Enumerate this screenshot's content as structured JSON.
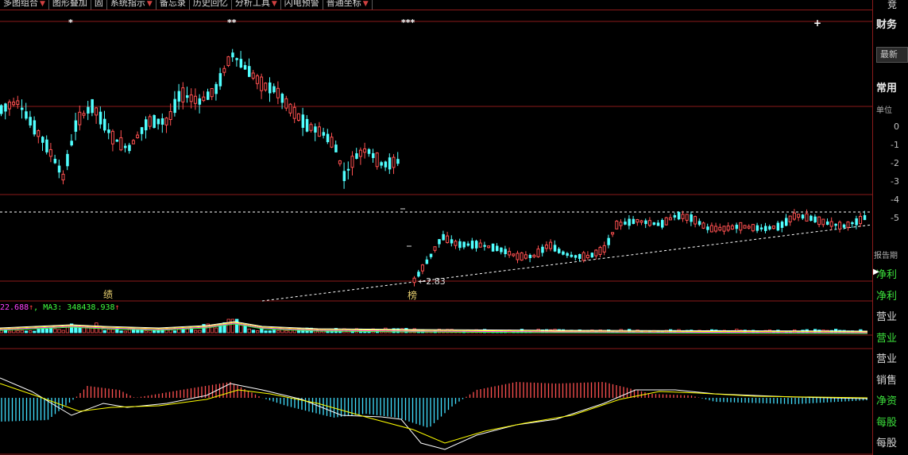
{
  "toolbar": {
    "items": [
      {
        "label": "多图组合",
        "dropdown": true
      },
      {
        "label": "图形叠加",
        "dropdown": false
      },
      {
        "label": "固",
        "dropdown": false
      },
      {
        "label": "系统指示",
        "dropdown": true
      },
      {
        "label": "备忘录",
        "dropdown": false
      },
      {
        "label": "历史回忆",
        "dropdown": false
      },
      {
        "label": "分析工具",
        "dropdown": true
      },
      {
        "label": "闪电预警",
        "dropdown": false
      },
      {
        "label": "普通坐标",
        "dropdown": true
      }
    ],
    "right_label": "竞"
  },
  "chart": {
    "markers": [
      "*",
      "**",
      "***",
      "+"
    ],
    "low_price_label": "←2.83",
    "stock_tags": [
      "绩",
      "榜"
    ],
    "volume_legend": {
      "ma2_text": "22.688",
      "ma2_arrow": "↑",
      "ma3_text": ", MA3: 348438.938",
      "ma3_arrow": "↑"
    },
    "colors": {
      "up": "#ff5050",
      "down": "#50ffff",
      "grid": "#8b1a1a",
      "ma_white": "#ffffff",
      "ma_yellow": "#ffff00",
      "ma_purple": "#ff40ff",
      "ma_green": "#40ff40",
      "macd_bar_down": "#40dfff",
      "macd_bar_up": "#ff5050"
    }
  },
  "right_panel": {
    "title": "财务",
    "latest_button": "最新",
    "section": "常用",
    "unit_label": "单位",
    "axis_values": [
      "0",
      "-1",
      "-2",
      "-3",
      "-4",
      "-5"
    ],
    "report_label": "报告期",
    "rows": [
      {
        "label": "净利",
        "style": "active"
      },
      {
        "label": "净利",
        "style": "green"
      },
      {
        "label": "营业",
        "style": "white"
      },
      {
        "label": "营业",
        "style": "green"
      },
      {
        "label": "营业",
        "style": "white"
      },
      {
        "label": "销售",
        "style": "white"
      },
      {
        "label": "净资",
        "style": "green"
      },
      {
        "label": "每股",
        "style": "green"
      },
      {
        "label": "每股",
        "style": "white"
      }
    ]
  }
}
